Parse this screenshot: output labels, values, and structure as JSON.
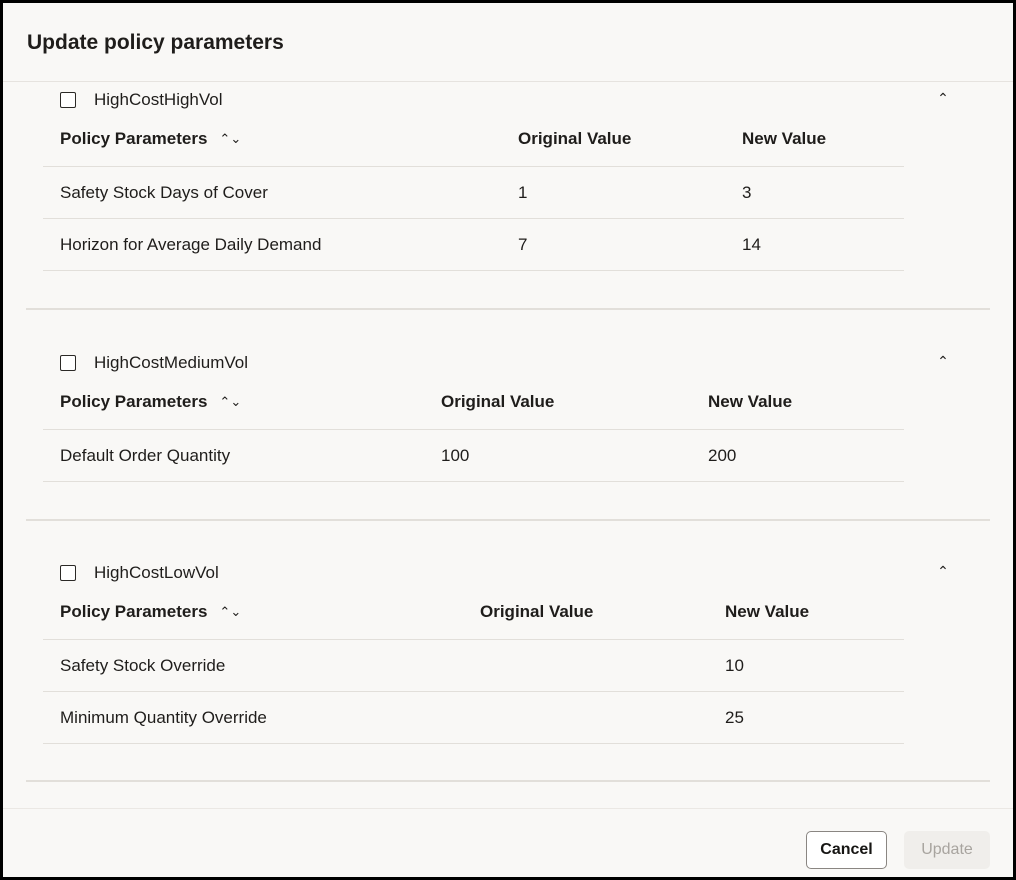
{
  "dialog": {
    "title": "Update policy parameters"
  },
  "columns": {
    "param": "Policy Parameters",
    "original": "Original Value",
    "new": "New Value"
  },
  "sections": [
    {
      "name": "HighCostHighVol",
      "checked": false,
      "expanded": true,
      "rows": [
        {
          "param": "Safety Stock Days of Cover",
          "original": "1",
          "new": "3"
        },
        {
          "param": "Horizon for Average Daily Demand",
          "original": "7",
          "new": "14"
        }
      ]
    },
    {
      "name": "HighCostMediumVol",
      "checked": false,
      "expanded": true,
      "rows": [
        {
          "param": "Default Order Quantity",
          "original": "100",
          "new": "200"
        }
      ]
    },
    {
      "name": "HighCostLowVol",
      "checked": false,
      "expanded": true,
      "rows": [
        {
          "param": "Safety Stock Override",
          "original": "",
          "new": "10"
        },
        {
          "param": "Minimum Quantity Override",
          "original": "",
          "new": "25"
        }
      ]
    }
  ],
  "icons": {
    "sort": "sort-up-down-icon",
    "collapse": "chevron-up-icon"
  },
  "footer": {
    "cancel": "Cancel",
    "update": "Update",
    "update_disabled": true
  }
}
